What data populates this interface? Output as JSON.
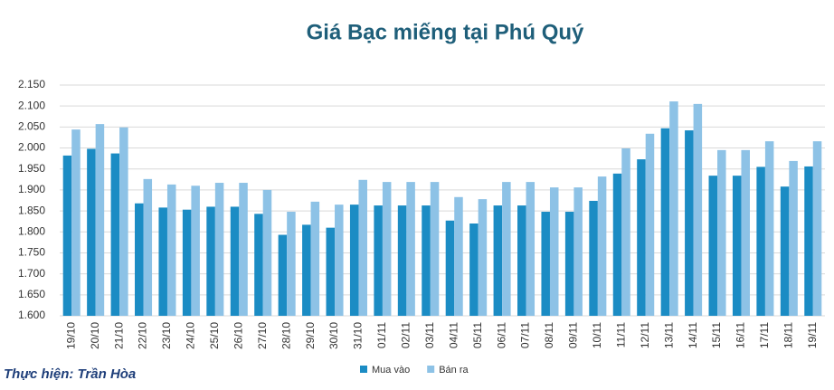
{
  "chart_data": {
    "type": "bar",
    "title": "Giá Bạc miếng tại Phú Quý",
    "credit": "Thực hiện: Trần Hòa",
    "categories": [
      "19/10",
      "20/10",
      "21/10",
      "22/10",
      "23/10",
      "24/10",
      "25/10",
      "26/10",
      "27/10",
      "28/10",
      "29/10",
      "30/10",
      "31/10",
      "01/11",
      "02/11",
      "03/11",
      "04/11",
      "05/11",
      "06/11",
      "07/11",
      "08/11",
      "09/11",
      "10/11",
      "11/11",
      "12/11",
      "13/11",
      "14/11",
      "15/11",
      "16/11",
      "17/11",
      "18/11",
      "19/11"
    ],
    "series": [
      {
        "name": "Mua vào",
        "color": "#1b8cc4",
        "values": [
          1982,
          1998,
          1987,
          1868,
          1858,
          1853,
          1860,
          1860,
          1843,
          1793,
          1817,
          1810,
          1865,
          1863,
          1863,
          1863,
          1827,
          1820,
          1863,
          1863,
          1848,
          1848,
          1874,
          1939,
          1973,
          2047,
          2042,
          1934,
          1934,
          1955,
          1908,
          1956
        ]
      },
      {
        "name": "Bán ra",
        "color": "#8dc2e6",
        "values": [
          2044,
          2057,
          2049,
          1926,
          1913,
          1910,
          1917,
          1917,
          1900,
          1848,
          1872,
          1865,
          1924,
          1919,
          1919,
          1919,
          1883,
          1878,
          1919,
          1919,
          1906,
          1906,
          1932,
          1999,
          2034,
          2111,
          2105,
          1995,
          1995,
          2016,
          1969,
          2016
        ]
      }
    ],
    "ylim": [
      1600,
      2150
    ],
    "yticks": [
      {
        "value": 1600,
        "label": "1.600"
      },
      {
        "value": 1650,
        "label": "1.650"
      },
      {
        "value": 1700,
        "label": "1.700"
      },
      {
        "value": 1750,
        "label": "1.750"
      },
      {
        "value": 1800,
        "label": "1.800"
      },
      {
        "value": 1850,
        "label": "1.850"
      },
      {
        "value": 1900,
        "label": "1.900"
      },
      {
        "value": 1950,
        "label": "1.950"
      },
      {
        "value": 2000,
        "label": "2.000"
      },
      {
        "value": 2050,
        "label": "2.050"
      },
      {
        "value": 2100,
        "label": "2.100"
      },
      {
        "value": 2150,
        "label": "2.150"
      }
    ],
    "grid": true,
    "legend": "bottom"
  }
}
